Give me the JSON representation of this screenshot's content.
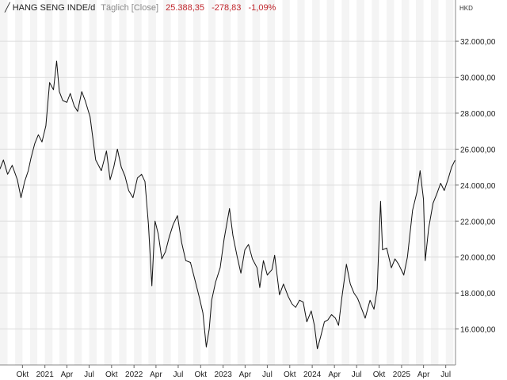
{
  "header": {
    "symbol_icon": "line-chart-icon",
    "instrument": "HANG SENG INDE/d",
    "mode": "Täglich [Close]",
    "last": "25.388,35",
    "change": "-278,83",
    "change_pct": "-1,09%",
    "currency": "HKD"
  },
  "colors": {
    "line": "#111111",
    "band": "#f4f4f4",
    "grid": "#dcdcdc",
    "negative": "#c0272d"
  },
  "chart_data": {
    "type": "line",
    "title": "",
    "xlabel": "",
    "ylabel": "",
    "ylim": [
      14000,
      33500
    ],
    "y_ticks": [
      {
        "value": 16000,
        "label": "16.000,00"
      },
      {
        "value": 18000,
        "label": "18.000,00"
      },
      {
        "value": 20000,
        "label": "20.000,00"
      },
      {
        "value": 22000,
        "label": "22.000,00"
      },
      {
        "value": 24000,
        "label": "24.000,00"
      },
      {
        "value": 26000,
        "label": "26.000,00"
      },
      {
        "value": 28000,
        "label": "28.000,00"
      },
      {
        "value": 30000,
        "label": "30.000,00"
      },
      {
        "value": 32000,
        "label": "32.000,00"
      }
    ],
    "x_range": [
      "2020-07-01",
      "2025-08-10"
    ],
    "x_ticks": [
      {
        "date": "2020-10-01",
        "label": "Okt"
      },
      {
        "date": "2021-01-01",
        "label": "2021"
      },
      {
        "date": "2021-04-01",
        "label": "Apr"
      },
      {
        "date": "2021-07-01",
        "label": "Jul"
      },
      {
        "date": "2021-10-01",
        "label": "Okt"
      },
      {
        "date": "2022-01-01",
        "label": "2022"
      },
      {
        "date": "2022-04-01",
        "label": "Apr"
      },
      {
        "date": "2022-07-01",
        "label": "Jul"
      },
      {
        "date": "2022-10-01",
        "label": "Okt"
      },
      {
        "date": "2023-01-01",
        "label": "2023"
      },
      {
        "date": "2023-04-01",
        "label": "Apr"
      },
      {
        "date": "2023-07-01",
        "label": "Jul"
      },
      {
        "date": "2023-10-01",
        "label": "Okt"
      },
      {
        "date": "2024-01-01",
        "label": "2024"
      },
      {
        "date": "2024-04-01",
        "label": "Apr"
      },
      {
        "date": "2024-07-01",
        "label": "Jul"
      },
      {
        "date": "2024-10-01",
        "label": "Okt"
      },
      {
        "date": "2025-01-01",
        "label": "2025"
      },
      {
        "date": "2025-04-01",
        "label": "Apr"
      },
      {
        "date": "2025-07-01",
        "label": "Jul"
      }
    ],
    "grid": true,
    "legend": "none",
    "series": [
      {
        "points": [
          [
            "2020-07-01",
            24900
          ],
          [
            "2020-07-15",
            25400
          ],
          [
            "2020-08-01",
            24600
          ],
          [
            "2020-08-20",
            25100
          ],
          [
            "2020-09-10",
            24300
          ],
          [
            "2020-09-25",
            23300
          ],
          [
            "2020-10-10",
            24200
          ],
          [
            "2020-10-25",
            24800
          ],
          [
            "2020-11-05",
            25500
          ],
          [
            "2020-11-20",
            26300
          ],
          [
            "2020-12-05",
            26800
          ],
          [
            "2020-12-20",
            26400
          ],
          [
            "2021-01-05",
            27300
          ],
          [
            "2021-01-20",
            29700
          ],
          [
            "2021-02-05",
            29300
          ],
          [
            "2021-02-18",
            30900
          ],
          [
            "2021-03-01",
            29200
          ],
          [
            "2021-03-15",
            28700
          ],
          [
            "2021-04-01",
            28600
          ],
          [
            "2021-04-15",
            29100
          ],
          [
            "2021-05-01",
            28400
          ],
          [
            "2021-05-15",
            28100
          ],
          [
            "2021-06-01",
            29200
          ],
          [
            "2021-06-15",
            28700
          ],
          [
            "2021-07-05",
            27800
          ],
          [
            "2021-07-28",
            25400
          ],
          [
            "2021-08-20",
            24800
          ],
          [
            "2021-09-10",
            25900
          ],
          [
            "2021-09-25",
            24300
          ],
          [
            "2021-10-10",
            25000
          ],
          [
            "2021-10-25",
            26000
          ],
          [
            "2021-11-10",
            25000
          ],
          [
            "2021-11-25",
            24500
          ],
          [
            "2021-12-10",
            23700
          ],
          [
            "2021-12-28",
            23300
          ],
          [
            "2022-01-15",
            24400
          ],
          [
            "2022-02-01",
            24600
          ],
          [
            "2022-02-15",
            24200
          ],
          [
            "2022-03-01",
            21800
          ],
          [
            "2022-03-15",
            18400
          ],
          [
            "2022-03-28",
            22000
          ],
          [
            "2022-04-10",
            21300
          ],
          [
            "2022-04-25",
            19900
          ],
          [
            "2022-05-10",
            20300
          ],
          [
            "2022-05-25",
            21100
          ],
          [
            "2022-06-10",
            21800
          ],
          [
            "2022-06-28",
            22300
          ],
          [
            "2022-07-15",
            20800
          ],
          [
            "2022-08-01",
            19800
          ],
          [
            "2022-08-20",
            19700
          ],
          [
            "2022-09-10",
            18600
          ],
          [
            "2022-09-25",
            17800
          ],
          [
            "2022-10-10",
            16900
          ],
          [
            "2022-10-24",
            15000
          ],
          [
            "2022-11-05",
            16000
          ],
          [
            "2022-11-15",
            17600
          ],
          [
            "2022-12-01",
            18600
          ],
          [
            "2022-12-20",
            19400
          ],
          [
            "2023-01-05",
            21000
          ],
          [
            "2023-01-27",
            22700
          ],
          [
            "2023-02-10",
            21200
          ],
          [
            "2023-02-28",
            20000
          ],
          [
            "2023-03-15",
            19100
          ],
          [
            "2023-03-31",
            20400
          ],
          [
            "2023-04-15",
            20700
          ],
          [
            "2023-05-01",
            19900
          ],
          [
            "2023-05-20",
            19400
          ],
          [
            "2023-05-31",
            18300
          ],
          [
            "2023-06-15",
            19800
          ],
          [
            "2023-07-01",
            19000
          ],
          [
            "2023-07-20",
            19300
          ],
          [
            "2023-07-31",
            20100
          ],
          [
            "2023-08-20",
            17900
          ],
          [
            "2023-09-05",
            18500
          ],
          [
            "2023-09-25",
            17800
          ],
          [
            "2023-10-10",
            17400
          ],
          [
            "2023-10-25",
            17200
          ],
          [
            "2023-11-10",
            17600
          ],
          [
            "2023-11-25",
            17500
          ],
          [
            "2023-12-10",
            16400
          ],
          [
            "2023-12-28",
            17000
          ],
          [
            "2024-01-10",
            16200
          ],
          [
            "2024-01-22",
            14900
          ],
          [
            "2024-02-05",
            15600
          ],
          [
            "2024-02-20",
            16400
          ],
          [
            "2024-03-05",
            16500
          ],
          [
            "2024-03-20",
            16800
          ],
          [
            "2024-04-05",
            16600
          ],
          [
            "2024-04-18",
            16200
          ],
          [
            "2024-05-01",
            17700
          ],
          [
            "2024-05-20",
            19600
          ],
          [
            "2024-06-05",
            18500
          ],
          [
            "2024-06-20",
            18000
          ],
          [
            "2024-07-05",
            17700
          ],
          [
            "2024-07-25",
            17000
          ],
          [
            "2024-08-05",
            16600
          ],
          [
            "2024-08-25",
            17600
          ],
          [
            "2024-09-10",
            17100
          ],
          [
            "2024-09-23",
            18200
          ],
          [
            "2024-10-07",
            23100
          ],
          [
            "2024-10-15",
            20400
          ],
          [
            "2024-11-01",
            20500
          ],
          [
            "2024-11-20",
            19400
          ],
          [
            "2024-12-05",
            19900
          ],
          [
            "2024-12-20",
            19600
          ],
          [
            "2025-01-10",
            19000
          ],
          [
            "2025-01-25",
            20000
          ],
          [
            "2025-02-15",
            22600
          ],
          [
            "2025-03-05",
            23600
          ],
          [
            "2025-03-18",
            24800
          ],
          [
            "2025-04-01",
            23200
          ],
          [
            "2025-04-08",
            19800
          ],
          [
            "2025-04-22",
            21600
          ],
          [
            "2025-05-10",
            23000
          ],
          [
            "2025-05-25",
            23500
          ],
          [
            "2025-06-10",
            24100
          ],
          [
            "2025-06-25",
            23700
          ],
          [
            "2025-07-10",
            24300
          ],
          [
            "2025-07-25",
            25000
          ],
          [
            "2025-08-08",
            25388
          ]
        ]
      }
    ]
  }
}
